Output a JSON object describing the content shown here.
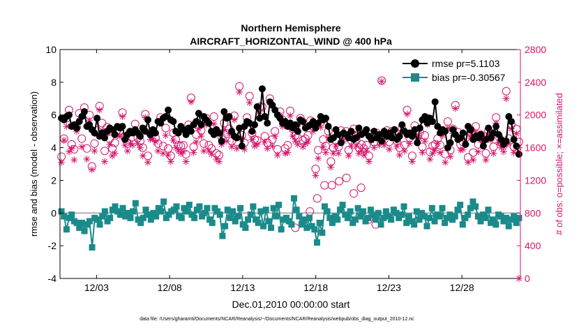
{
  "chart_data": {
    "type": "line",
    "title_line1": "Northern Hemisphere",
    "title_line2": "AIRCRAFT_HORIZONTAL_WIND @ 400 hPa",
    "xlabel": "Dec.01,2010 00:00:00 start",
    "ylabel_left": "rmse and bias (model - observation)",
    "ylabel_right": "# of obs: o=possible; ×=assimilated",
    "xlim": [
      0,
      31.5
    ],
    "ylim_left": [
      -4,
      10
    ],
    "ylim_right": [
      0,
      2800
    ],
    "left_ticks": [
      "10",
      "8",
      "6",
      "4",
      "2",
      "0",
      "-2",
      "-4"
    ],
    "right_ticks": [
      "2800",
      "2400",
      "2000",
      "1600",
      "1200",
      "800",
      "400",
      "0"
    ],
    "x_ticks": [
      "12/03",
      "12/08",
      "12/13",
      "12/18",
      "12/23",
      "12/28"
    ],
    "x_tick_values": [
      2.5,
      7.5,
      12.5,
      17.5,
      22.5,
      27.5
    ],
    "series": [
      {
        "name": "rmse pr=5.1103",
        "axis": "left",
        "color": "#000000",
        "marker": "circle",
        "values": [
          5.8,
          5.7,
          5.9,
          6.0,
          5.3,
          5.4,
          5.2,
          5.6,
          5.9,
          6.2,
          5.3,
          5.4,
          5.1,
          4.9,
          5.8,
          4.7,
          4.9,
          4.6,
          5.0,
          5.2,
          5.1,
          4.8,
          5.3,
          5.2,
          5.3,
          4.5,
          4.8,
          5.0,
          4.9,
          5.1,
          4.9,
          4.7,
          5.2,
          5.0,
          5.7,
          4.8,
          5.1,
          4.9,
          5.6,
          5.5,
          5.8,
          5.9,
          6.3,
          5.7,
          5.6,
          5.0,
          4.9,
          5.3,
          5.1,
          4.8,
          5.2,
          5.0,
          5.4,
          5.6,
          6.1,
          5.4,
          5.9,
          5.7,
          5.5,
          5.0,
          4.8,
          5.1,
          4.9,
          4.4,
          6.2,
          5.8,
          5.9,
          5.0,
          4.7,
          4.6,
          5.2,
          4.1,
          5.3,
          5.6,
          5.5,
          5.0,
          5.4,
          6.5,
          5.8,
          7.6,
          5.9,
          5.5,
          6.8,
          6.6,
          6.3,
          6.0,
          5.8,
          5.5,
          5.6,
          5.3,
          5.5,
          5.2,
          5.4,
          5.0,
          5.7,
          5.6,
          5.2,
          5.3,
          5.4,
          5.6,
          5.2,
          5.5,
          5.9,
          5.7,
          5.8,
          5.3,
          4.5,
          4.6,
          5.1,
          4.8,
          4.3,
          4.9,
          4.8,
          4.6,
          5.0,
          4.5,
          4.6,
          5.2,
          4.8,
          4.9,
          5.1,
          4.7,
          4.5,
          5.0,
          4.6,
          4.8,
          4.4,
          5.0,
          4.7,
          4.9,
          4.6,
          5.1,
          4.5,
          4.7,
          5.4,
          5.0,
          4.8,
          4.9,
          4.7,
          5.1,
          4.3,
          5.2,
          5.7,
          5.9,
          5.5,
          5.8,
          5.6,
          6.8,
          5.3,
          4.9,
          5.1,
          5.0,
          4.0,
          4.3,
          5.1,
          4.8,
          4.5,
          4.6,
          4.9,
          4.2,
          5.3,
          5.1,
          4.5,
          4.7,
          4.6,
          4.8,
          4.1,
          4.5,
          5.2,
          4.6,
          4.9,
          5.3,
          4.8,
          4.5,
          4.2,
          4.4,
          5.9,
          5.6,
          4.5,
          4.1,
          3.6
        ]
      },
      {
        "name": "bias pr=-0.30567",
        "axis": "left",
        "color": "#1a8a8a",
        "marker": "square",
        "values": [
          0.1,
          -0.2,
          -1.0,
          -0.3,
          -0.1,
          -0.5,
          -0.6,
          -0.9,
          -0.6,
          -1.1,
          -0.7,
          -0.5,
          -2.1,
          -0.3,
          -0.4,
          -0.7,
          -0.2,
          0.1,
          -0.5,
          -0.3,
          0.2,
          0.4,
          0.1,
          -0.1,
          0.3,
          -0.2,
          0.0,
          -0.3,
          0.1,
          0.6,
          -0.4,
          -0.6,
          -0.3,
          0.2,
          -0.1,
          -0.4,
          0.0,
          -0.2,
          0.3,
          0.1,
          0.7,
          -0.3,
          -0.1,
          0.1,
          0.2,
          0.4,
          -0.2,
          -0.3,
          0.3,
          0.1,
          0.5,
          -0.1,
          -0.3,
          0.2,
          0.4,
          -0.2,
          0.0,
          0.3,
          -0.4,
          -0.6,
          0.3,
          0.1,
          -0.1,
          -1.4,
          -0.8,
          0.2,
          -0.3,
          0.1,
          -0.5,
          -0.2,
          0.3,
          -0.7,
          -0.9,
          -0.4,
          -0.1,
          0.4,
          -0.4,
          -0.6,
          0.1,
          -0.8,
          0.2,
          -0.5,
          -0.9,
          0.3,
          -0.2,
          0.5,
          -1.0,
          -0.4,
          -0.3,
          -0.5,
          -0.7,
          0.9,
          0.2,
          -0.2,
          -0.7,
          -0.4,
          -0.9,
          -0.3,
          -0.8,
          -1.0,
          -1.8,
          -0.6,
          -1.2,
          0.4,
          0.1,
          -0.3,
          -0.6,
          -0.2,
          -0.4,
          0.2,
          0.5,
          -0.1,
          -0.3,
          0.1,
          -0.6,
          -0.4,
          0.3,
          -0.2,
          0.1,
          -0.5,
          -0.3,
          0.2,
          -0.1,
          -0.4,
          0.0,
          -0.7,
          -0.3,
          0.1,
          -0.2,
          -0.4,
          0.2,
          0.0,
          -0.3,
          -0.1,
          0.4,
          -0.6,
          -0.2,
          -0.5,
          -0.7,
          0.1,
          -0.4,
          0.0,
          -0.2,
          -0.8,
          -0.3,
          0.3,
          -0.5,
          -0.1,
          -0.2,
          0.3,
          -0.6,
          -0.3,
          -0.1,
          -0.4,
          -0.2,
          0.2,
          0.5,
          -0.7,
          -0.3,
          -0.1,
          0.3,
          0.7,
          0.4,
          -0.2,
          -0.5,
          -0.1,
          -0.3,
          0.2,
          -0.6,
          -0.4,
          -0.7,
          -0.1,
          -0.2,
          -0.5,
          -0.3,
          -0.8,
          -0.4,
          -0.2,
          -0.6,
          -0.3
        ]
      },
      {
        "name": "possible",
        "axis": "right",
        "color": "#d6156b",
        "marker": "open-circle",
        "values": [
          1490,
          1710,
          1960,
          2060,
          1640,
          1580,
          1850,
          2020,
          1710,
          2090,
          1590,
          2000,
          1370,
          1650,
          1810,
          2110,
          1900,
          1560,
          1850,
          1710,
          1590,
          1660,
          1820,
          1810,
          2030,
          1720,
          1650,
          1790,
          1730,
          1890,
          1720,
          1680,
          1600,
          2010,
          1500,
          1770,
          1800,
          1720,
          1650,
          1970,
          1620,
          1840,
          1590,
          1500,
          1780,
          1700,
          1630,
          1620,
          1630,
          1520,
          1880,
          2210,
          1610,
          1760,
          1870,
          1810,
          1650,
          1960,
          1630,
          1590,
          1980,
          1530,
          1510,
          1730,
          1900,
          1770,
          1830,
          1680,
          1990,
          1670,
          2350,
          1750,
          1660,
          1970,
          2230,
          1780,
          1700,
          1690,
          2100,
          2100,
          1740,
          1660,
          2200,
          1700,
          1800,
          1580,
          2040,
          1940,
          1590,
          1630,
          2050,
          1830,
          1750,
          1720,
          1960,
          1690,
          1710,
          1750,
          1930,
          1860,
          1340,
          1570,
          1910,
          1700,
          1620,
          1800,
          1430,
          1600,
          1690,
          1610,
          1810,
          1750,
          1800,
          1570,
          1690,
          1830,
          1690,
          1600,
          1640,
          1590,
          1630,
          1500,
          1770,
          1670,
          1780,
          1720,
          2420,
          1700,
          1810,
          1670,
          1800,
          1790,
          1680,
          1600,
          1840,
          1630,
          2060,
          1720,
          1500,
          1870,
          1800,
          1790,
          1610,
          1750,
          1960,
          1550,
          1620,
          1640,
          1710,
          1630,
          1800,
          1520,
          1920,
          1570,
          1830,
          2120,
          1790,
          1640,
          1670,
          1720,
          1480,
          1820,
          1540,
          1860,
          1640,
          1760,
          1690,
          1530,
          1810,
          1770,
          1610,
          1970,
          1740,
          1660,
          1630,
          2290,
          1710,
          1880,
          1610,
          1830,
          1670
        ]
      },
      {
        "name": "assimilated",
        "axis": "right",
        "color": "#d6156b",
        "marker": "asterisk",
        "values": [
          1420,
          1690,
          1860,
          1550,
          1590,
          1450,
          1800,
          1930,
          1610,
          2040,
          1460,
          1930,
          1330,
          1560,
          1760,
          2060,
          1810,
          1430,
          1770,
          1640,
          1500,
          1530,
          1750,
          1740,
          1980,
          1630,
          1560,
          1650,
          1630,
          1820,
          1650,
          1600,
          1500,
          1970,
          1420,
          1700,
          1710,
          1670,
          1560,
          1910,
          1530,
          1750,
          1510,
          1430,
          1690,
          1600,
          1560,
          1530,
          1550,
          1430,
          1810,
          2160,
          1540,
          1670,
          1830,
          1740,
          1560,
          1880,
          1560,
          1520,
          1890,
          1460,
          1430,
          1640,
          1820,
          1680,
          1770,
          1610,
          1940,
          1590,
          2280,
          1700,
          1580,
          1910,
          2150,
          1700,
          1620,
          1640,
          2040,
          1970,
          1670,
          1590,
          2150,
          1620,
          1740,
          1510,
          2000,
          1860,
          1530,
          1540,
          1990,
          1740,
          1680,
          1640,
          1900,
          1610,
          1650,
          1670,
          1880,
          1800,
          1260,
          1470,
          1850,
          1610,
          1540,
          1720,
          1360,
          1530,
          1620,
          1530,
          1750,
          1680,
          1730,
          1500,
          1620,
          1780,
          1620,
          1530,
          1560,
          1510,
          1560,
          1430,
          1690,
          1600,
          1720,
          1630,
          2410,
          1630,
          1740,
          1580,
          1730,
          1720,
          1620,
          1510,
          1790,
          1560,
          2010,
          1650,
          1430,
          1800,
          1730,
          1710,
          1540,
          1680,
          1880,
          1460,
          1530,
          1570,
          1650,
          1540,
          1750,
          1420,
          1840,
          1490,
          1770,
          2080,
          1700,
          1570,
          1580,
          1650,
          1420,
          1740,
          1450,
          1790,
          1550,
          1690,
          1630,
          1450,
          1750,
          1690,
          1530,
          1900,
          1660,
          1600,
          1550,
          2200,
          1650,
          1830,
          1540,
          1770,
          1600
        ]
      },
      {
        "name": "possible-outliers",
        "axis": "right",
        "color": "#d6156b",
        "marker": "open-circle",
        "x": [
          16.1,
          16.6,
          17.1,
          17.6,
          18.1,
          18.6,
          19.1,
          19.6,
          20.1,
          20.6,
          21.1,
          21.6
        ],
        "values": [
          620,
          680,
          820,
          980,
          1140,
          1140,
          1190,
          1230,
          1040,
          1110,
          720,
          660
        ]
      },
      {
        "name": "assimilated-zero-end",
        "axis": "right",
        "color": "#d6156b",
        "marker": "asterisk",
        "x": [
          31.4
        ],
        "values": [
          0
        ]
      }
    ],
    "legend": [
      {
        "label": "rmse pr=5.1103",
        "color": "#000000",
        "marker": "circle"
      },
      {
        "label": "bias pr=-0.30567",
        "color": "#1a8a8a",
        "marker": "square"
      }
    ],
    "legend_position": "top-right",
    "footnote": "data file: /Users/gharamti/Documents/NCAR/Reanalysis/~/Documents/NCAR/Reanalysis/webpub/obs_diag_output_2010-12.nc",
    "colors": {
      "left_axis": "#000000",
      "right_axis": "#d6156b",
      "rmse": "#000000",
      "bias": "#1a8a8a",
      "counts": "#d6156b",
      "zero_line": "#b0b0b0"
    }
  }
}
